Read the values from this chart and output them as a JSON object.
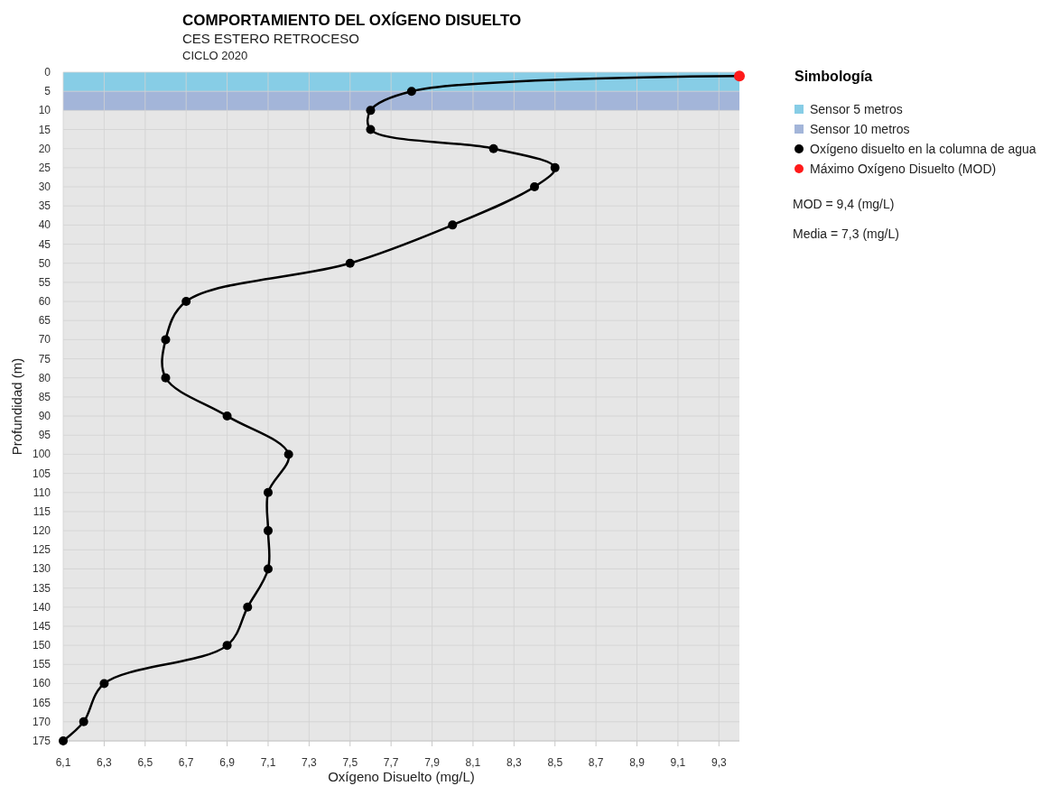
{
  "chart_data": {
    "type": "line",
    "title": "COMPORTAMIENTO DEL OXÍGENO DISUELTO",
    "subtitle": "CES ESTERO RETROCESO",
    "xlabel": "Oxígeno Disuelto (mg/L)",
    "ylabel": "Profundidad (m)",
    "legend_title": "Simbología",
    "legend": "right",
    "grid": true,
    "marker": "circle",
    "line_style": "solid",
    "annotations": [
      "CICLO 2020",
      "MOD = 9,4 (mg/L)",
      "Media = 7,3 (mg/L)"
    ],
    "xlim": [
      6.1,
      9.4
    ],
    "ylim": [
      175,
      0
    ],
    "xticks": [
      {
        "value": 6.1,
        "label": "6,1"
      },
      {
        "value": 6.3,
        "label": "6,3"
      },
      {
        "value": 6.5,
        "label": "6,5"
      },
      {
        "value": 6.7,
        "label": "6,7"
      },
      {
        "value": 6.9,
        "label": "6,9"
      },
      {
        "value": 7.1,
        "label": "7,1"
      },
      {
        "value": 7.3,
        "label": "7,3"
      },
      {
        "value": 7.5,
        "label": "7,5"
      },
      {
        "value": 7.7,
        "label": "7,7"
      },
      {
        "value": 7.9,
        "label": "7,9"
      },
      {
        "value": 8.1,
        "label": "8,1"
      },
      {
        "value": 8.3,
        "label": "8,3"
      },
      {
        "value": 8.5,
        "label": "8,5"
      },
      {
        "value": 8.7,
        "label": "8,7"
      },
      {
        "value": 8.9,
        "label": "8,9"
      },
      {
        "value": 9.1,
        "label": "9,1"
      },
      {
        "value": 9.3,
        "label": "9,3"
      }
    ],
    "yticks": [
      0,
      5,
      10,
      15,
      20,
      25,
      30,
      35,
      40,
      45,
      50,
      55,
      60,
      65,
      70,
      75,
      80,
      85,
      90,
      95,
      100,
      105,
      110,
      115,
      120,
      125,
      130,
      135,
      140,
      145,
      150,
      155,
      160,
      165,
      170,
      175
    ],
    "bands": [
      {
        "axis": "y",
        "from": 0,
        "to": 5,
        "label": "Sensor 5 metros",
        "color": "#87cde6"
      },
      {
        "axis": "y",
        "from": 5,
        "to": 10,
        "label": "Sensor 10 metros",
        "color": "#a3b5d9"
      }
    ],
    "series": [
      {
        "name": "Oxígeno disuelto en la columna de agua",
        "color": "#000000",
        "type": "line",
        "x": [
          9.4,
          7.8,
          7.6,
          7.6,
          8.2,
          8.5,
          8.4,
          8.0,
          7.5,
          6.7,
          6.6,
          6.6,
          6.9,
          7.2,
          7.1,
          7.1,
          7.1,
          7.0,
          6.9,
          6.3,
          6.2,
          6.1
        ],
        "values": [
          1,
          5,
          10,
          15,
          20,
          25,
          30,
          40,
          50,
          60,
          70,
          80,
          90,
          100,
          110,
          120,
          130,
          140,
          150,
          160,
          170,
          175
        ]
      },
      {
        "name": "Máximo Oxígeno Disuelto (MOD)",
        "color": "#ff1a1a",
        "type": "scatter",
        "x": [
          9.4
        ],
        "values": [
          1
        ]
      }
    ]
  }
}
